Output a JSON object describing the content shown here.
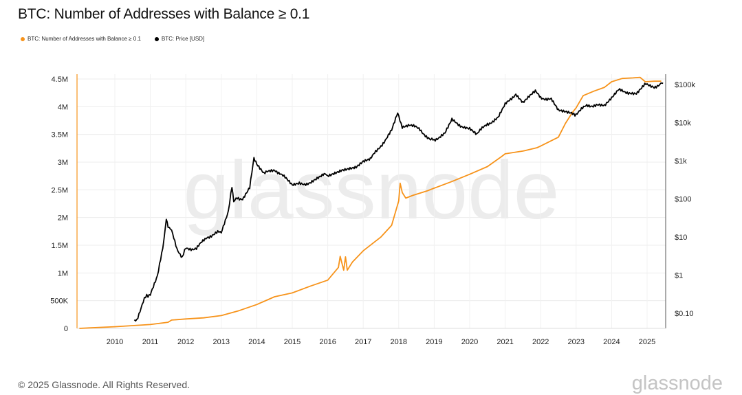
{
  "title": "BTC: Number of Addresses with Balance ≥ 0.1",
  "legend": [
    {
      "label": "BTC: Number of Addresses with Balance ≥ 0.1",
      "color": "#f7931a"
    },
    {
      "label": "BTC: Price [USD]",
      "color": "#000000"
    }
  ],
  "footer": "© 2025 Glassnode. All Rights Reserved.",
  "brand": "glassnode",
  "watermark": "glassnode",
  "chart_data": {
    "type": "line",
    "title": "BTC: Number of Addresses with Balance ≥ 0.1",
    "x_ticks": [
      "2010",
      "2011",
      "2012",
      "2013",
      "2014",
      "2015",
      "2016",
      "2017",
      "2018",
      "2019",
      "2020",
      "2021",
      "2022",
      "2023",
      "2024",
      "2025"
    ],
    "y_left": {
      "ticks": [
        "0",
        "500K",
        "1M",
        "1.5M",
        "2M",
        "2.5M",
        "3M",
        "3.5M",
        "4M",
        "4.5M"
      ],
      "range": [
        0,
        4500000
      ]
    },
    "y_right": {
      "scale": "log",
      "ticks": [
        "$0.10",
        "$1",
        "$10",
        "$100",
        "$1k",
        "$10k",
        "$100k"
      ],
      "range": [
        0.05,
        200000
      ]
    },
    "x_range": [
      2009.0,
      2025.45
    ],
    "grid": true,
    "legend_position": "top-left",
    "series": [
      {
        "name": "BTC: Number of Addresses with Balance ≥ 0.1",
        "color": "#f7931a",
        "axis": "left",
        "points": [
          [
            2009.0,
            0
          ],
          [
            2009.5,
            15000
          ],
          [
            2010.0,
            30000
          ],
          [
            2010.5,
            50000
          ],
          [
            2011.0,
            70000
          ],
          [
            2011.5,
            110000
          ],
          [
            2011.6,
            150000
          ],
          [
            2012.0,
            170000
          ],
          [
            2012.5,
            190000
          ],
          [
            2013.0,
            230000
          ],
          [
            2013.5,
            320000
          ],
          [
            2014.0,
            430000
          ],
          [
            2014.5,
            570000
          ],
          [
            2015.0,
            640000
          ],
          [
            2015.5,
            760000
          ],
          [
            2016.0,
            870000
          ],
          [
            2016.3,
            1100000
          ],
          [
            2016.35,
            1300000
          ],
          [
            2016.45,
            1050000
          ],
          [
            2016.5,
            1290000
          ],
          [
            2016.55,
            1050000
          ],
          [
            2016.7,
            1200000
          ],
          [
            2017.0,
            1400000
          ],
          [
            2017.5,
            1650000
          ],
          [
            2017.8,
            1860000
          ],
          [
            2018.0,
            2300000
          ],
          [
            2018.04,
            2620000
          ],
          [
            2018.1,
            2450000
          ],
          [
            2018.2,
            2350000
          ],
          [
            2018.4,
            2400000
          ],
          [
            2018.8,
            2480000
          ],
          [
            2019.0,
            2530000
          ],
          [
            2019.5,
            2650000
          ],
          [
            2020.0,
            2780000
          ],
          [
            2020.5,
            2920000
          ],
          [
            2020.9,
            3100000
          ],
          [
            2021.0,
            3150000
          ],
          [
            2021.5,
            3200000
          ],
          [
            2021.9,
            3260000
          ],
          [
            2022.0,
            3290000
          ],
          [
            2022.5,
            3450000
          ],
          [
            2022.7,
            3700000
          ],
          [
            2022.9,
            3900000
          ],
          [
            2023.0,
            3980000
          ],
          [
            2023.2,
            4200000
          ],
          [
            2023.5,
            4280000
          ],
          [
            2023.8,
            4350000
          ],
          [
            2024.0,
            4450000
          ],
          [
            2024.3,
            4510000
          ],
          [
            2024.6,
            4520000
          ],
          [
            2024.8,
            4530000
          ],
          [
            2024.95,
            4450000
          ],
          [
            2025.2,
            4460000
          ],
          [
            2025.4,
            4460000
          ]
        ]
      },
      {
        "name": "BTC: Price [USD]",
        "color": "#000000",
        "axis": "right",
        "points": [
          [
            2010.55,
            0.06
          ],
          [
            2010.62,
            0.07
          ],
          [
            2010.8,
            0.2
          ],
          [
            2010.9,
            0.3
          ],
          [
            2011.0,
            0.3
          ],
          [
            2011.2,
            0.9
          ],
          [
            2011.35,
            5
          ],
          [
            2011.45,
            30
          ],
          [
            2011.5,
            20
          ],
          [
            2011.6,
            14
          ],
          [
            2011.75,
            5
          ],
          [
            2011.9,
            3
          ],
          [
            2012.0,
            5
          ],
          [
            2012.3,
            5
          ],
          [
            2012.6,
            10
          ],
          [
            2012.9,
            13
          ],
          [
            2013.0,
            14
          ],
          [
            2013.2,
            50
          ],
          [
            2013.3,
            200
          ],
          [
            2013.35,
            80
          ],
          [
            2013.45,
            110
          ],
          [
            2013.6,
            100
          ],
          [
            2013.8,
            200
          ],
          [
            2013.92,
            1100
          ],
          [
            2014.0,
            800
          ],
          [
            2014.2,
            450
          ],
          [
            2014.5,
            600
          ],
          [
            2014.8,
            350
          ],
          [
            2015.0,
            220
          ],
          [
            2015.2,
            250
          ],
          [
            2015.5,
            260
          ],
          [
            2015.9,
            430
          ],
          [
            2016.0,
            420
          ],
          [
            2016.4,
            600
          ],
          [
            2016.8,
            700
          ],
          [
            2017.0,
            970
          ],
          [
            2017.2,
            1100
          ],
          [
            2017.5,
            2500
          ],
          [
            2017.8,
            6000
          ],
          [
            2017.97,
            17000
          ],
          [
            2018.1,
            8000
          ],
          [
            2018.3,
            9000
          ],
          [
            2018.6,
            6500
          ],
          [
            2018.9,
            3500
          ],
          [
            2019.0,
            3600
          ],
          [
            2019.3,
            5000
          ],
          [
            2019.5,
            11500
          ],
          [
            2019.8,
            8000
          ],
          [
            2020.0,
            7200
          ],
          [
            2020.2,
            5000
          ],
          [
            2020.5,
            9300
          ],
          [
            2020.8,
            13000
          ],
          [
            2021.0,
            29000
          ],
          [
            2021.3,
            58000
          ],
          [
            2021.5,
            35000
          ],
          [
            2021.85,
            64000
          ],
          [
            2022.0,
            46000
          ],
          [
            2022.3,
            40000
          ],
          [
            2022.5,
            20000
          ],
          [
            2022.9,
            16500
          ],
          [
            2023.0,
            17000
          ],
          [
            2023.3,
            28000
          ],
          [
            2023.6,
            29000
          ],
          [
            2023.8,
            27000
          ],
          [
            2024.0,
            42000
          ],
          [
            2024.2,
            70000
          ],
          [
            2024.5,
            62000
          ],
          [
            2024.7,
            60000
          ],
          [
            2024.9,
            95000
          ],
          [
            2025.0,
            100000
          ],
          [
            2025.2,
            85000
          ],
          [
            2025.35,
            104000
          ],
          [
            2025.45,
            107000
          ]
        ]
      }
    ]
  }
}
